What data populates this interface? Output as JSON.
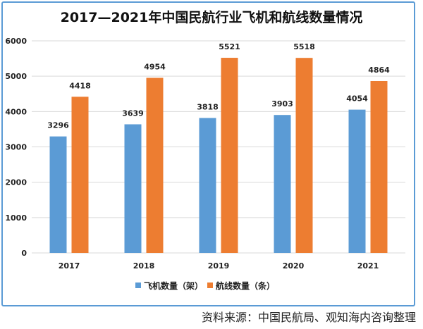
{
  "chart_data": {
    "type": "bar",
    "title": "2017—2021年中国民航行业飞机和航线数量情况",
    "categories": [
      "2017",
      "2018",
      "2019",
      "2020",
      "2021"
    ],
    "series": [
      {
        "name": "飞机数量（架）",
        "values": [
          3296,
          3639,
          3818,
          3903,
          4054
        ],
        "color": "#5b9bd5"
      },
      {
        "name": "航线数量（条）",
        "values": [
          4418,
          4954,
          5521,
          5518,
          4864
        ],
        "color": "#ed7d31"
      }
    ],
    "ylim": [
      0,
      6000
    ],
    "yticks": [
      0,
      1000,
      2000,
      3000,
      4000,
      5000,
      6000
    ],
    "grid": true,
    "legend": "bottom",
    "data_labels": true
  },
  "source": "资料来源：中国民航局、观知海内咨询整理"
}
